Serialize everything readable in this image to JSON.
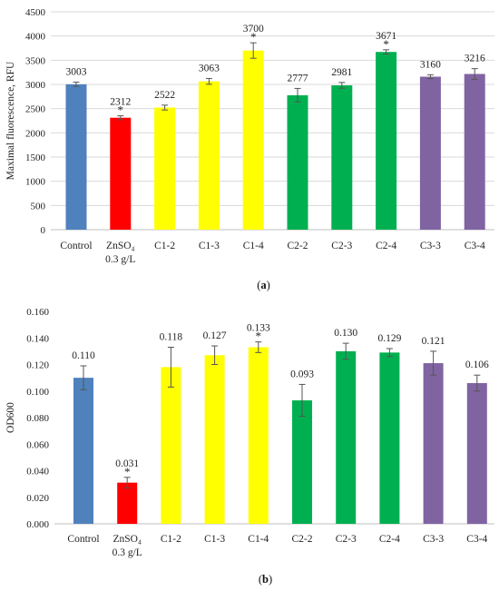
{
  "chart_data": [
    {
      "panel": "(a)",
      "type": "bar",
      "ylabel": "Maximal fluorescence, RFU",
      "ylim": [
        0,
        4500
      ],
      "yticks": [
        0,
        500,
        1000,
        1500,
        2000,
        2500,
        3000,
        3500,
        4000,
        4500
      ],
      "grid": true,
      "categories": [
        [
          "Control"
        ],
        [
          "ZnSO₄",
          "0.3 g/L"
        ],
        [
          "C1-2"
        ],
        [
          "C1-3"
        ],
        [
          "C1-4"
        ],
        [
          "C2-2"
        ],
        [
          "C2-3"
        ],
        [
          "C2-4"
        ],
        [
          "C3-3"
        ],
        [
          "C3-4"
        ]
      ],
      "values": [
        3003,
        2312,
        2522,
        3063,
        3700,
        2777,
        2981,
        3671,
        3160,
        3216
      ],
      "labels": [
        "3003",
        "2312",
        "2522",
        "3063",
        "3700",
        "2777",
        "2981",
        "3671",
        "3160",
        "3216"
      ],
      "errors": [
        45,
        40,
        50,
        60,
        160,
        140,
        60,
        45,
        40,
        110
      ],
      "significant": [
        false,
        true,
        false,
        false,
        true,
        false,
        false,
        true,
        false,
        false
      ],
      "colors": [
        "#4f81bd",
        "#ff0000",
        "#ffff00",
        "#ffff00",
        "#ffff00",
        "#00b050",
        "#00b050",
        "#00b050",
        "#8064a2",
        "#8064a2"
      ]
    },
    {
      "panel": "(b)",
      "type": "bar",
      "ylabel": "OD600",
      "ylim": [
        0,
        0.16
      ],
      "yticks": [
        "0.000",
        "0.020",
        "0.040",
        "0.060",
        "0.080",
        "0.100",
        "0.120",
        "0.140",
        "0.160"
      ],
      "grid": false,
      "categories": [
        [
          "Control"
        ],
        [
          "ZnSO₄",
          "0.3 g/L"
        ],
        [
          "C1-2"
        ],
        [
          "C1-3"
        ],
        [
          "C1-4"
        ],
        [
          "C2-2"
        ],
        [
          "C2-3"
        ],
        [
          "C2-4"
        ],
        [
          "C3-3"
        ],
        [
          "C3-4"
        ]
      ],
      "values": [
        0.11,
        0.031,
        0.118,
        0.127,
        0.133,
        0.093,
        0.13,
        0.129,
        0.121,
        0.106
      ],
      "labels": [
        "0.110",
        "0.031",
        "0.118",
        "0.127",
        "0.133",
        "0.093",
        "0.130",
        "0.129",
        "0.121",
        "0.106"
      ],
      "errors": [
        0.009,
        0.004,
        0.015,
        0.007,
        0.004,
        0.012,
        0.006,
        0.003,
        0.009,
        0.006
      ],
      "significant": [
        false,
        true,
        false,
        false,
        true,
        false,
        false,
        false,
        false,
        false
      ],
      "colors": [
        "#4f81bd",
        "#ff0000",
        "#ffff00",
        "#ffff00",
        "#ffff00",
        "#00b050",
        "#00b050",
        "#00b050",
        "#8064a2",
        "#8064a2"
      ]
    }
  ]
}
